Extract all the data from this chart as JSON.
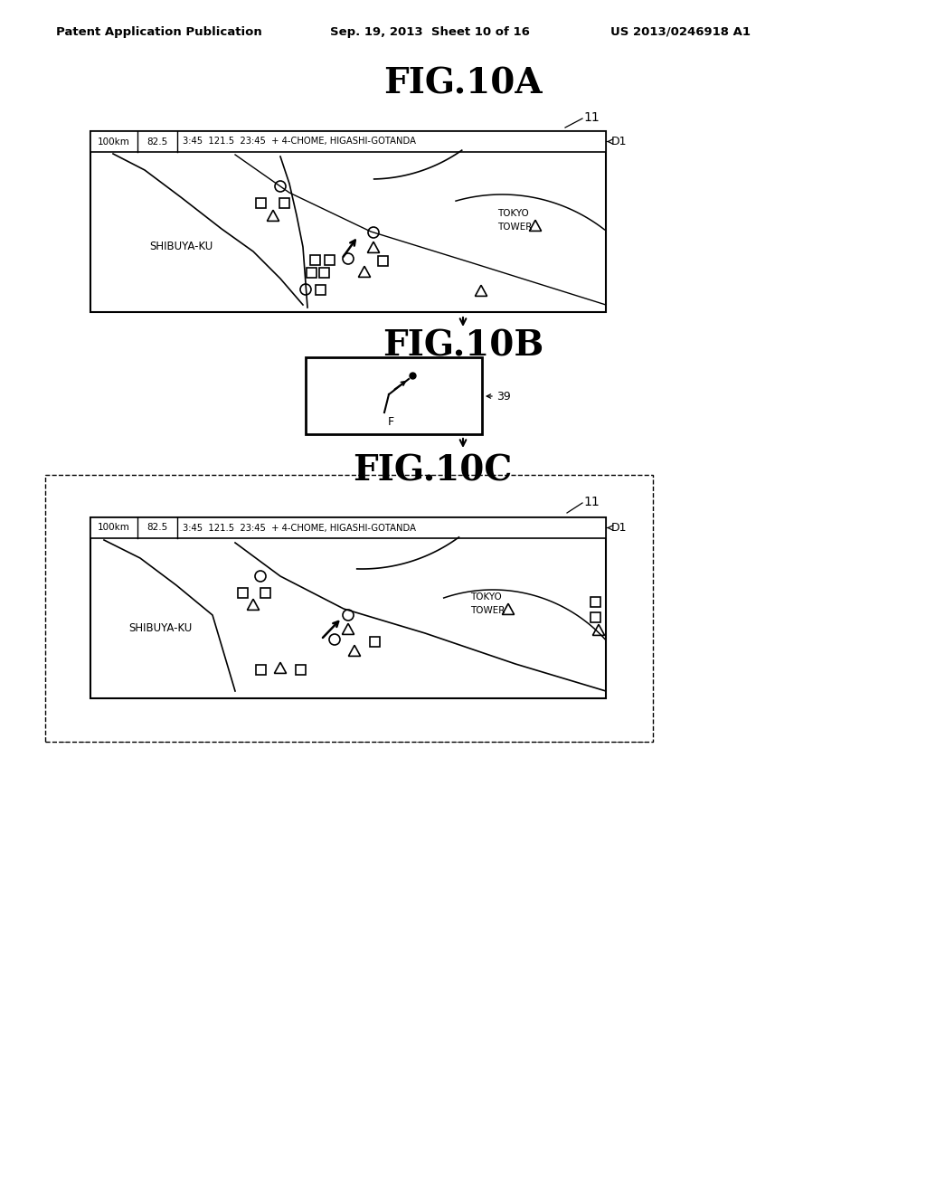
{
  "header_left": "Patent Application Publication",
  "header_mid": "Sep. 19, 2013  Sheet 10 of 16",
  "header_right": "US 2013/0246918 A1",
  "fig10a_title": "FIG.10A",
  "fig10b_title": "FIG.10B",
  "fig10c_title": "FIG.10C",
  "status_bar_text": "3:45  121.5  23:45  + 4-CHOME, HIGASHI-GOTANDA",
  "label_d1": "D1",
  "label_11": "11",
  "label_39": "39",
  "label_shibuya": "SHIBUYA-KU",
  "label_tokyo": "TOKYO",
  "label_tower": "TOWER",
  "bg_color": "#ffffff",
  "line_color": "#000000"
}
